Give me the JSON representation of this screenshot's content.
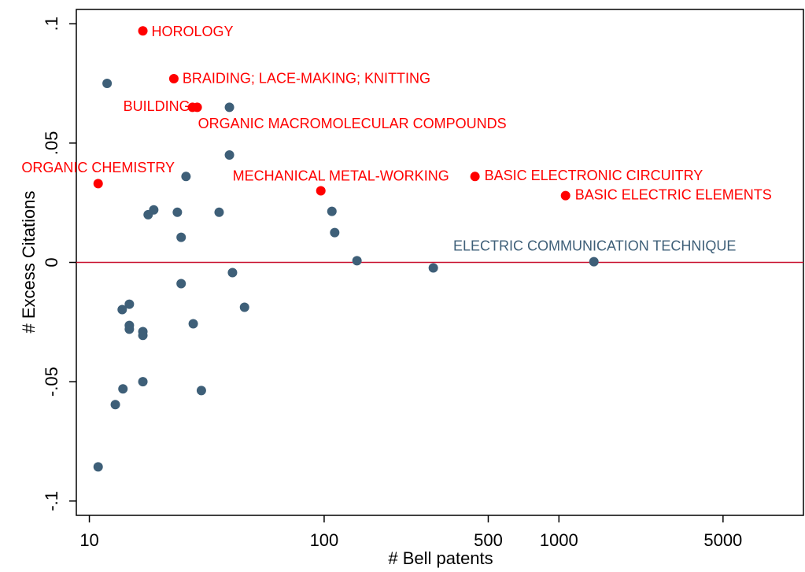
{
  "chart_data": {
    "type": "scatter",
    "x_label": "# Bell patents",
    "y_label": "# Excess Citations",
    "xscale": "log",
    "xlim": [
      8.8,
      11000
    ],
    "ylim": [
      -0.106,
      0.106
    ],
    "xticks": [
      10,
      100,
      500,
      1000,
      5000
    ],
    "yticks": [
      {
        "value": -0.1,
        "label": "-.1"
      },
      {
        "value": -0.05,
        "label": "-.05"
      },
      {
        "value": 0,
        "label": "0"
      },
      {
        "value": 0.05,
        "label": ".05"
      },
      {
        "value": 0.1,
        "label": ".1"
      }
    ],
    "reference_line": {
      "value": 0,
      "color": "#c8102e"
    },
    "series": [
      {
        "color": "#ff0000",
        "x": [
          16.9,
          22.9,
          27.5,
          28.8,
          10.9,
          96.8,
          439,
          1067
        ],
        "values": [
          0.097,
          0.077,
          0.065,
          0.065,
          0.033,
          0.03,
          0.036,
          0.028
        ],
        "labels": [
          "HOROLOGY",
          "BRAIDING; LACE-MAKING; KNITTING",
          "BUILDING",
          "ORGANIC MACROMOLECULAR COMPOUNDS",
          "ORGANIC CHEMISTRY",
          "MECHANICAL METAL-WORKING",
          "BASIC ELECTRONIC CIRCUITRY",
          "BASIC ELECTRIC ELEMENTS"
        ]
      },
      {
        "color": "#3e5f78",
        "x": [
          1409,
          11.9,
          39.5,
          39.5,
          25.8,
          17.8,
          18.8,
          23.7,
          35.7,
          24.6,
          107.9,
          110.9,
          138,
          291.7,
          24.6,
          40.7,
          45.8,
          14.8,
          13.8,
          14.8,
          14.8,
          16.9,
          16.9,
          27.7,
          30.0,
          13.9,
          16.9,
          12.9,
          10.9
        ],
        "values": [
          0.0003,
          0.075,
          0.065,
          0.045,
          0.036,
          0.02,
          0.022,
          0.021,
          0.021,
          0.0105,
          0.0214,
          0.0125,
          0.0007,
          -0.0023,
          -0.0089,
          -0.0043,
          -0.0188,
          -0.0175,
          -0.0198,
          -0.0264,
          -0.028,
          -0.029,
          -0.0306,
          -0.0257,
          -0.0537,
          -0.053,
          -0.05,
          -0.0596,
          -0.0857
        ],
        "labels": [
          "ELECTRIC COMMUNICATION TECHNIQUE",
          null,
          null,
          null,
          null,
          null,
          null,
          null,
          null,
          null,
          null,
          null,
          null,
          null,
          null,
          null,
          null,
          null,
          null,
          null,
          null,
          null,
          null,
          null,
          null,
          null,
          null,
          null,
          null
        ]
      }
    ]
  }
}
